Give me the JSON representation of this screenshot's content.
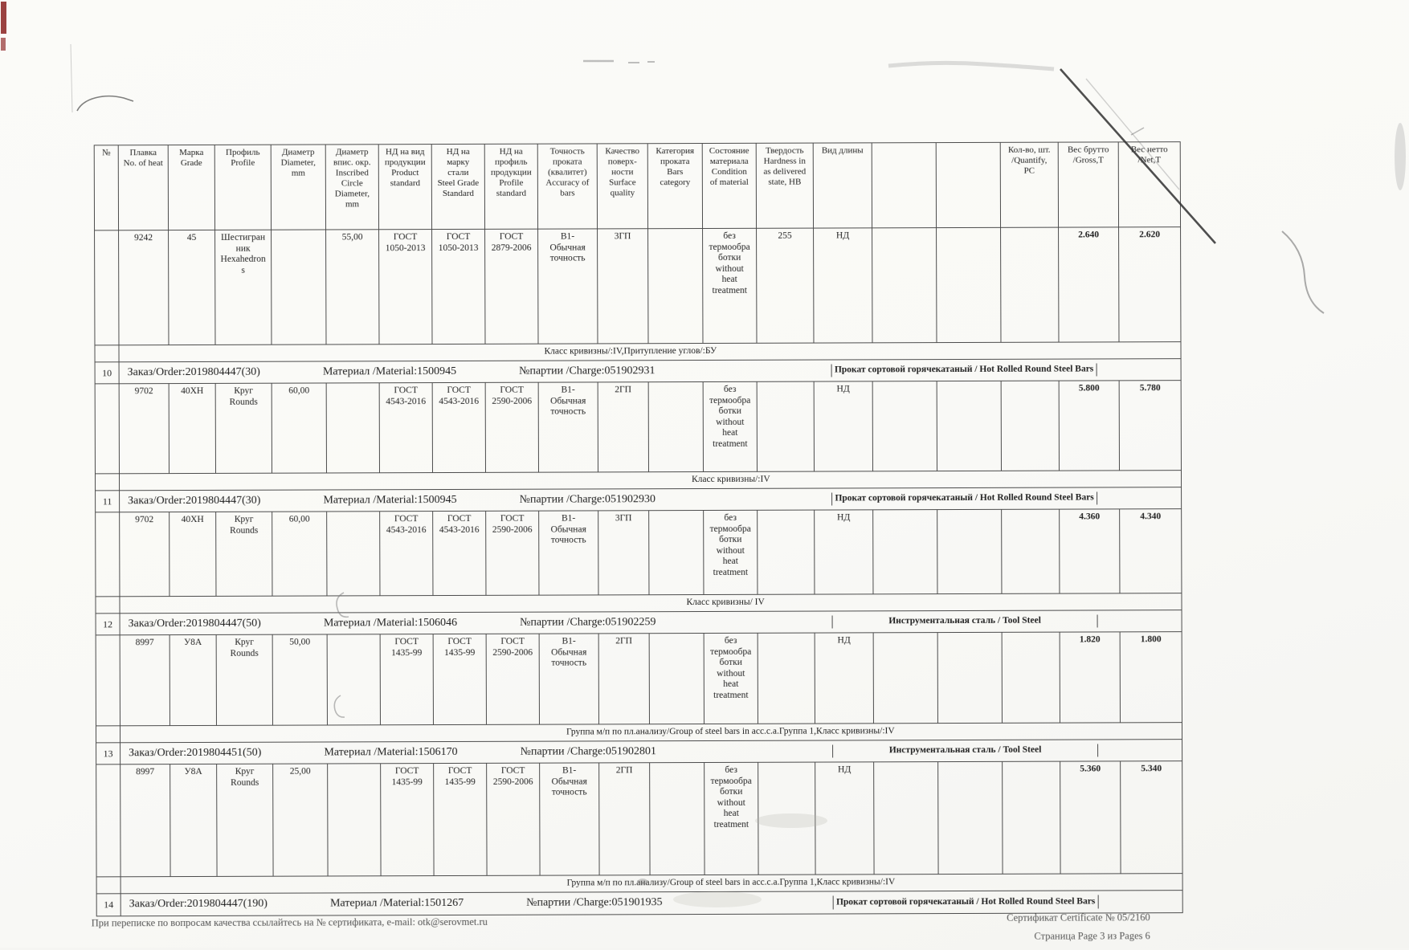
{
  "table": {
    "columns": [
      "№",
      "Плавка\nNo. of heat",
      "Марка\nGrade",
      "Профиль\nProfile",
      "Диаметр\nDiameter,\nmm",
      "Диаметр\nвпис. окр.\nInscribed\nCircle\nDiameter,\nmm",
      "НД на вид\nпродукции\nProduct\nstandard",
      "НД на\nмарку\nстали\nSteel Grade\nStandard",
      "НД на\nпрофиль\nпродукции\nProfile\nstandard",
      "Точность\nпроката\n(квалитет)\nAccuracy of\nbars",
      "Качество\nповерх-\nности\nSurface\nquality",
      "Категория\nпроката\nBars\ncategory",
      "Состояние\nматериала\nCondition\nof material",
      "Твердость\nHardness in\nas delivered\nstate, HB",
      "Вид длины",
      "",
      "",
      "Кол-во, шт.\n/Quantify,\nPC",
      "Вес брутто\n/Gross,T",
      "Вес нетто\n/Net,T"
    ],
    "rows": [
      {
        "type": "data",
        "cells": [
          "",
          "9242",
          "45",
          "Шестигран\nник\nHexahedron\ns",
          "",
          "55,00",
          "ГОСТ\n1050-2013",
          "ГОСТ\n1050-2013",
          "ГОСТ\n2879-2006",
          "В1-\nОбычная\nточность",
          "3ГП",
          "",
          "без\nтермообра\nботки\nwithout\nheat\ntreatment",
          "255",
          "НД",
          "",
          "",
          "",
          "2.640",
          "2.620"
        ]
      },
      {
        "type": "divider",
        "text": "Класс кривизны/:IV,Притупление углов/:БУ"
      },
      {
        "type": "order",
        "num": "10",
        "order_no": "Заказ/Order:2019804447(30)",
        "material": "Материал /Material:1500945",
        "charge": "№партии /Charge:051902931",
        "product": "Прокат сортовой горячекатаный / Hot Rolled Round Steel Bars"
      },
      {
        "type": "data",
        "cells": [
          "",
          "9702",
          "40ХН",
          "Круг\nRounds",
          "60,00",
          "",
          "ГОСТ\n4543-2016",
          "ГОСТ\n4543-2016",
          "ГОСТ\n2590-2006",
          "В1-\nОбычная\nточность",
          "2ГП",
          "",
          "без\nтермообра\nботки\nwithout\nheat\ntreatment",
          "",
          "НД",
          "",
          "",
          "",
          "5.800",
          "5.780"
        ]
      },
      {
        "type": "divider",
        "text": "Класс кривизны/:IV"
      },
      {
        "type": "order",
        "num": "11",
        "order_no": "Заказ/Order:2019804447(30)",
        "material": "Материал /Material:1500945",
        "charge": "№партии /Charge:051902930",
        "product": "Прокат сортовой горячекатаный / Hot Rolled Round Steel Bars"
      },
      {
        "type": "data",
        "cells": [
          "",
          "9702",
          "40ХН",
          "Круг\nRounds",
          "60,00",
          "",
          "ГОСТ\n4543-2016",
          "ГОСТ\n4543-2016",
          "ГОСТ\n2590-2006",
          "В1-\nОбычная\nточность",
          "3ГП",
          "",
          "без\nтермообра\nботки\nwithout\nheat\ntreatment",
          "",
          "НД",
          "",
          "",
          "",
          "4.360",
          "4.340"
        ]
      },
      {
        "type": "divider",
        "text": "Класс кривизны/ IV"
      },
      {
        "type": "order",
        "num": "12",
        "order_no": "Заказ/Order:2019804447(50)",
        "material": "Материал /Material:1506046",
        "charge": "№партии /Charge:051902259",
        "product": "Инструментальная сталь / Tool Steel"
      },
      {
        "type": "data",
        "cells": [
          "",
          "8997",
          "У8А",
          "Круг\nRounds",
          "50,00",
          "",
          "ГОСТ\n1435-99",
          "ГОСТ\n1435-99",
          "ГОСТ\n2590-2006",
          "В1-\nОбычная\nточность",
          "2ГП",
          "",
          "без\nтермообра\nботки\nwithout\nheat\ntreatment",
          "",
          "НД",
          "",
          "",
          "",
          "1.820",
          "1.800"
        ]
      },
      {
        "type": "divider",
        "text": "Группа м/п по пл.анализу/Group of steel bars in acc.c.a.Группа 1,Класс кривизны/:IV"
      },
      {
        "type": "order",
        "num": "13",
        "order_no": "Заказ/Order:2019804451(50)",
        "material": "Материал /Material:1506170",
        "charge": "№партии /Charge:051902801",
        "product": "Инструментальная сталь / Tool Steel"
      },
      {
        "type": "data",
        "cells": [
          "",
          "8997",
          "У8А",
          "Круг\nRounds",
          "25,00",
          "",
          "ГОСТ\n1435-99",
          "ГОСТ\n1435-99",
          "ГОСТ\n2590-2006",
          "В1-\nОбычная\nточность",
          "2ГП",
          "",
          "без\nтермообра\nботки\nwithout\nheat\ntreatment",
          "",
          "НД",
          "",
          "",
          "",
          "5.360",
          "5.340"
        ]
      },
      {
        "type": "divider",
        "text": "Группа м/п по пл.анализу/Group of steel bars in acc.c.a.Группа 1,Класс кривизны/:IV"
      },
      {
        "type": "order",
        "num": "14",
        "order_no": "Заказ/Order:2019804447(190)",
        "material": "Материал /Material:1501267",
        "charge": "№партии /Charge:051901935",
        "product": "Прокат сортовой горячекатаный / Hot Rolled Round Steel Bars"
      }
    ]
  },
  "footer": {
    "left": "При переписке по вопросам качества ссылайтесь на № сертификата, e-mail: otk@serovmet.ru",
    "right_line1": "Сертификат Certificate № 05/2160",
    "right_line2": "Страница Page 3 из Pages 6"
  }
}
